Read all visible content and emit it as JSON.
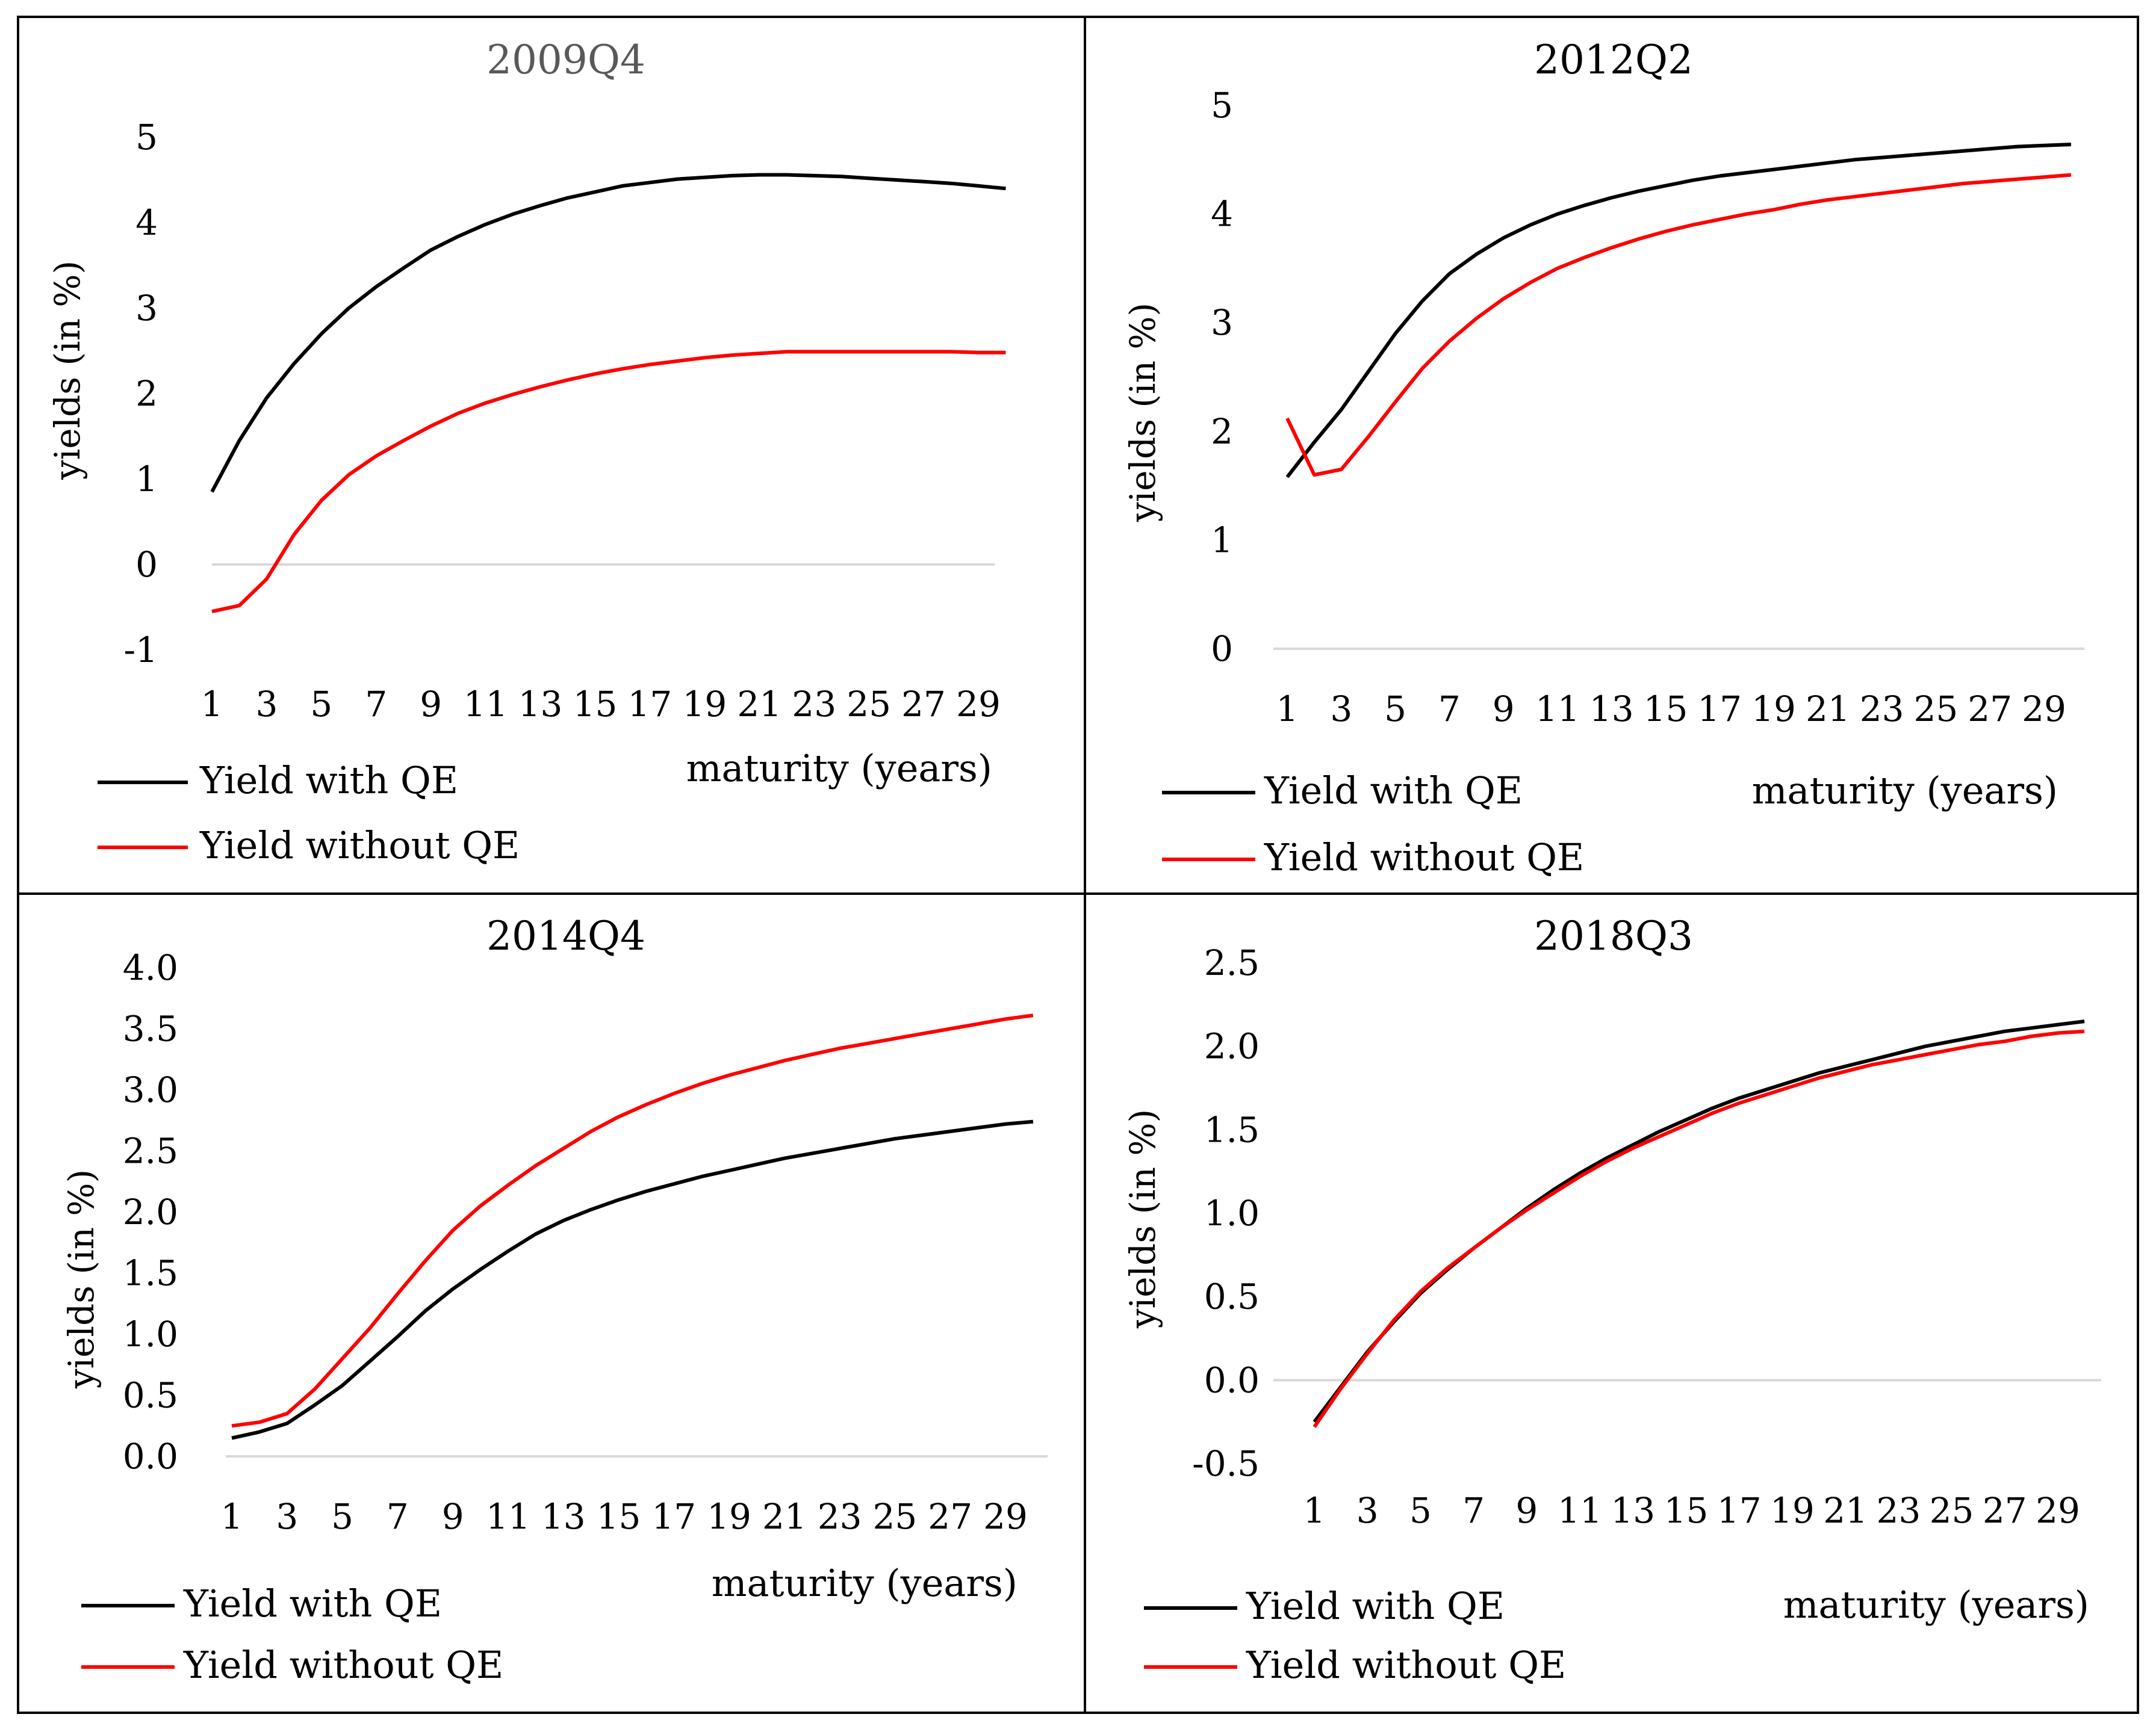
{
  "colors": {
    "with_qe": "#000000",
    "without_qe": "#ff0000",
    "zero_line": "#d9d9d9",
    "border": "#000000",
    "title_muted": "#595959",
    "text": "#000000"
  },
  "chart_data": [
    {
      "type": "line",
      "title": "2009Q4",
      "xlabel": "maturity (years)",
      "ylabel": "yields (in %)",
      "x": [
        1,
        2,
        3,
        4,
        5,
        6,
        7,
        8,
        9,
        10,
        11,
        12,
        13,
        14,
        15,
        16,
        17,
        18,
        19,
        20,
        21,
        22,
        23,
        24,
        25,
        26,
        27,
        28,
        29,
        30
      ],
      "xticks": [
        "1",
        "3",
        "5",
        "7",
        "9",
        "11",
        "13",
        "15",
        "17",
        "19",
        "21",
        "23",
        "25",
        "27",
        "29"
      ],
      "ylim": [
        -1,
        5
      ],
      "yticks": [
        "-1",
        "0",
        "1",
        "2",
        "3",
        "4",
        "5"
      ],
      "series": [
        {
          "name": "Yield with QE",
          "values": [
            0.85,
            1.45,
            1.95,
            2.35,
            2.7,
            3.0,
            3.25,
            3.47,
            3.68,
            3.84,
            3.98,
            4.1,
            4.2,
            4.29,
            4.36,
            4.43,
            4.47,
            4.51,
            4.53,
            4.55,
            4.56,
            4.56,
            4.55,
            4.54,
            4.52,
            4.5,
            4.48,
            4.46,
            4.43,
            4.4
          ]
        },
        {
          "name": "Yield without QE",
          "values": [
            -0.55,
            -0.48,
            -0.17,
            0.35,
            0.75,
            1.05,
            1.27,
            1.45,
            1.62,
            1.77,
            1.89,
            1.99,
            2.08,
            2.16,
            2.23,
            2.29,
            2.34,
            2.38,
            2.42,
            2.45,
            2.47,
            2.49,
            2.49,
            2.49,
            2.49,
            2.49,
            2.49,
            2.49,
            2.48,
            2.48
          ]
        }
      ]
    },
    {
      "type": "line",
      "title": "2012Q2",
      "xlabel": "maturity (years)",
      "ylabel": "yields (in %)",
      "x": [
        1,
        2,
        3,
        4,
        5,
        6,
        7,
        8,
        9,
        10,
        11,
        12,
        13,
        14,
        15,
        16,
        17,
        18,
        19,
        20,
        21,
        22,
        23,
        24,
        25,
        26,
        27,
        28,
        29,
        30
      ],
      "xticks": [
        "1",
        "3",
        "5",
        "7",
        "9",
        "11",
        "13",
        "15",
        "17",
        "19",
        "21",
        "23",
        "25",
        "27",
        "29"
      ],
      "ylim": [
        0,
        5
      ],
      "yticks": [
        "0",
        "1",
        "2",
        "3",
        "4",
        "5"
      ],
      "series": [
        {
          "name": "Yield with QE",
          "values": [
            1.58,
            1.9,
            2.2,
            2.55,
            2.9,
            3.2,
            3.45,
            3.63,
            3.78,
            3.9,
            4.0,
            4.08,
            4.15,
            4.21,
            4.26,
            4.31,
            4.35,
            4.38,
            4.41,
            4.44,
            4.47,
            4.5,
            4.52,
            4.54,
            4.56,
            4.58,
            4.6,
            4.62,
            4.63,
            4.64
          ]
        },
        {
          "name": "Yield without QE",
          "values": [
            2.12,
            1.6,
            1.65,
            1.95,
            2.27,
            2.58,
            2.83,
            3.04,
            3.22,
            3.37,
            3.5,
            3.6,
            3.69,
            3.77,
            3.84,
            3.9,
            3.95,
            4.0,
            4.04,
            4.09,
            4.13,
            4.16,
            4.19,
            4.22,
            4.25,
            4.28,
            4.3,
            4.32,
            4.34,
            4.36
          ]
        }
      ]
    },
    {
      "type": "line",
      "title": "2014Q4",
      "xlabel": "maturity (years)",
      "ylabel": "yields (in %)",
      "x": [
        1,
        2,
        3,
        4,
        5,
        6,
        7,
        8,
        9,
        10,
        11,
        12,
        13,
        14,
        15,
        16,
        17,
        18,
        19,
        20,
        21,
        22,
        23,
        24,
        25,
        26,
        27,
        28,
        29,
        30
      ],
      "xticks": [
        "1",
        "3",
        "5",
        "7",
        "9",
        "11",
        "13",
        "15",
        "17",
        "19",
        "21",
        "23",
        "25",
        "27",
        "29"
      ],
      "ylim": [
        0,
        4
      ],
      "yticks": [
        "0.0",
        "0.5",
        "1.0",
        "1.5",
        "2.0",
        "2.5",
        "3.0",
        "3.5",
        "4.0"
      ],
      "series": [
        {
          "name": "Yield with QE",
          "values": [
            0.15,
            0.2,
            0.27,
            0.42,
            0.58,
            0.78,
            0.98,
            1.19,
            1.37,
            1.53,
            1.68,
            1.82,
            1.93,
            2.02,
            2.1,
            2.17,
            2.23,
            2.29,
            2.34,
            2.39,
            2.44,
            2.48,
            2.52,
            2.56,
            2.6,
            2.63,
            2.66,
            2.69,
            2.72,
            2.74
          ]
        },
        {
          "name": "Yield without QE",
          "values": [
            0.25,
            0.28,
            0.35,
            0.55,
            0.8,
            1.05,
            1.33,
            1.6,
            1.85,
            2.05,
            2.22,
            2.38,
            2.52,
            2.66,
            2.78,
            2.88,
            2.97,
            3.05,
            3.12,
            3.18,
            3.24,
            3.29,
            3.34,
            3.38,
            3.42,
            3.46,
            3.5,
            3.54,
            3.58,
            3.61
          ]
        }
      ]
    },
    {
      "type": "line",
      "title": "2018Q3",
      "xlabel": "maturity (years)",
      "ylabel": "yields (in %)",
      "x": [
        1,
        2,
        3,
        4,
        5,
        6,
        7,
        8,
        9,
        10,
        11,
        12,
        13,
        14,
        15,
        16,
        17,
        18,
        19,
        20,
        21,
        22,
        23,
        24,
        25,
        26,
        27,
        28,
        29,
        30
      ],
      "xticks": [
        "1",
        "3",
        "5",
        "7",
        "9",
        "11",
        "13",
        "15",
        "17",
        "19",
        "21",
        "23",
        "25",
        "27",
        "29"
      ],
      "ylim": [
        -0.5,
        2.5
      ],
      "yticks": [
        "-0.5",
        "0.0",
        "0.5",
        "1.0",
        "1.5",
        "2.0",
        "2.5"
      ],
      "series": [
        {
          "name": "Yield with QE",
          "values": [
            -0.25,
            -0.04,
            0.17,
            0.35,
            0.52,
            0.66,
            0.79,
            0.91,
            1.03,
            1.14,
            1.24,
            1.33,
            1.41,
            1.49,
            1.56,
            1.63,
            1.69,
            1.74,
            1.79,
            1.84,
            1.88,
            1.92,
            1.96,
            2.0,
            2.03,
            2.06,
            2.09,
            2.11,
            2.13,
            2.15
          ]
        },
        {
          "name": "Yield without QE",
          "values": [
            -0.28,
            -0.05,
            0.16,
            0.36,
            0.53,
            0.67,
            0.79,
            0.91,
            1.02,
            1.12,
            1.22,
            1.31,
            1.39,
            1.46,
            1.53,
            1.6,
            1.66,
            1.71,
            1.76,
            1.81,
            1.85,
            1.89,
            1.92,
            1.95,
            1.98,
            2.01,
            2.03,
            2.06,
            2.08,
            2.09
          ]
        }
      ]
    }
  ]
}
